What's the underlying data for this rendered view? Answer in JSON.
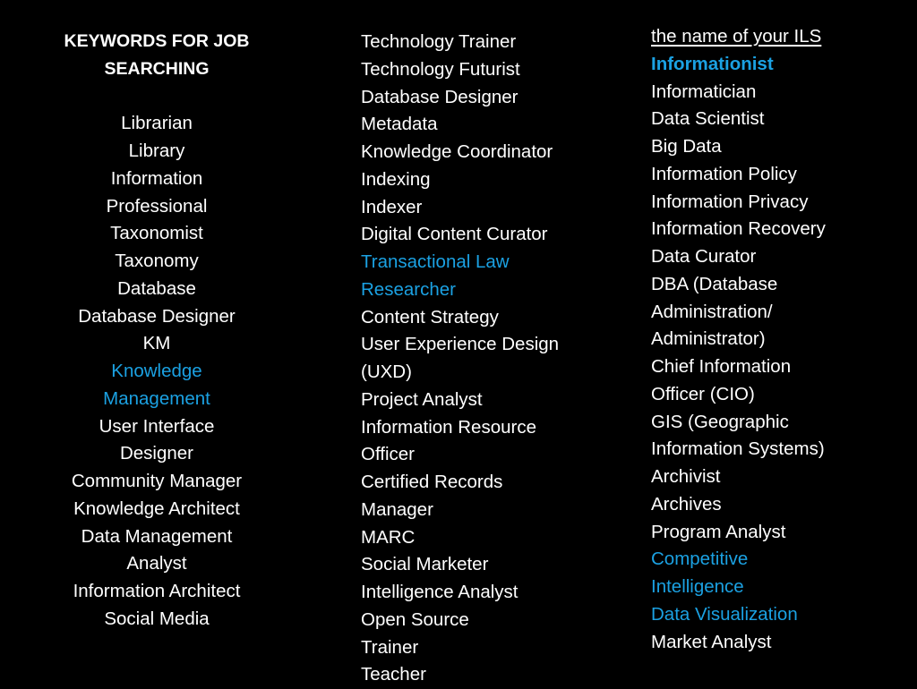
{
  "accent_color": "#1ba1e2",
  "column1": {
    "heading": [
      "KEYWORDS FOR JOB",
      "SEARCHING"
    ],
    "items": [
      {
        "text": "Librarian"
      },
      {
        "text": "Library"
      },
      {
        "text": "Information"
      },
      {
        "text": "Professional"
      },
      {
        "text": "Taxonomist"
      },
      {
        "text": "Taxonomy"
      },
      {
        "text": "Database"
      },
      {
        "text": "Database Designer"
      },
      {
        "text": "KM"
      },
      {
        "text": "Knowledge",
        "highlight": true
      },
      {
        "text": "Management",
        "highlight": true
      },
      {
        "text": "User Interface"
      },
      {
        "text": "Designer"
      },
      {
        "text": "Community Manager"
      },
      {
        "text": "Knowledge Architect"
      },
      {
        "text": "Data Management"
      },
      {
        "text": "Analyst"
      },
      {
        "text": "Information Architect"
      },
      {
        "text": "Social Media"
      }
    ]
  },
  "column2": {
    "items": [
      {
        "text": "Technology Trainer"
      },
      {
        "text": "Technology Futurist"
      },
      {
        "text": "Database Designer"
      },
      {
        "text": "Metadata"
      },
      {
        "text": "Knowledge Coordinator"
      },
      {
        "text": "Indexing"
      },
      {
        "text": "Indexer"
      },
      {
        "text": "Digital Content Curator"
      },
      {
        "text": "Transactional Law",
        "highlight": true
      },
      {
        "text": "Researcher",
        "highlight": true
      },
      {
        "text": "Content Strategy"
      },
      {
        "text": "User Experience Design"
      },
      {
        "text": "(UXD)"
      },
      {
        "text": "Project Analyst"
      },
      {
        "text": "Information Resource"
      },
      {
        "text": "Officer"
      },
      {
        "text": "Certified Records"
      },
      {
        "text": "Manager"
      },
      {
        "text": "MARC"
      },
      {
        "text": "Social Marketer"
      },
      {
        "text": "Intelligence Analyst"
      },
      {
        "text": "Open Source"
      },
      {
        "text": "Trainer"
      },
      {
        "text": "Teacher"
      }
    ]
  },
  "column3": {
    "items": [
      {
        "text": "the name of your ILS",
        "underline": true
      },
      {
        "text": "Informationist",
        "highlight": true,
        "bold": true
      },
      {
        "text": "Informatician"
      },
      {
        "text": "Data Scientist"
      },
      {
        "text": "Big Data"
      },
      {
        "text": "Information Policy"
      },
      {
        "text": "Information Privacy"
      },
      {
        "text": "Information Recovery"
      },
      {
        "text": "Data Curator"
      },
      {
        "text": "DBA (Database"
      },
      {
        "text": "Administration/"
      },
      {
        "text": "Administrator)"
      },
      {
        "text": "Chief Information"
      },
      {
        "text": "Officer (CIO)"
      },
      {
        "text": "GIS (Geographic"
      },
      {
        "text": "Information Systems)"
      },
      {
        "text": "Archivist"
      },
      {
        "text": "Archives"
      },
      {
        "text": "Program Analyst"
      },
      {
        "text": "Competitive",
        "highlight": true
      },
      {
        "text": "Intelligence",
        "highlight": true
      },
      {
        "text": "Data Visualization",
        "highlight": true
      },
      {
        "text": "Market Analyst"
      }
    ]
  }
}
